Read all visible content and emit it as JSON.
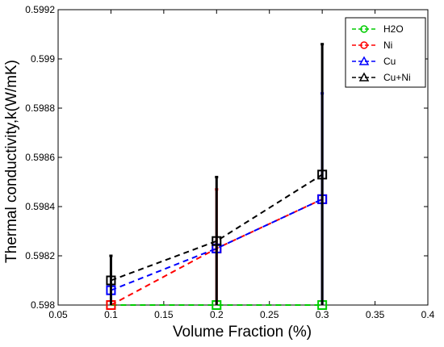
{
  "chart_data": {
    "type": "line",
    "xlabel": "Volume Fraction (%)",
    "ylabel": "Thermal conductivity,k(W/mK)",
    "xlim": [
      0.05,
      0.4
    ],
    "ylim": [
      0.598,
      0.5992
    ],
    "x_ticks": [
      "0.05",
      "0.1",
      "0.15",
      "0.2",
      "0.25",
      "0.3",
      "0.35",
      "0.4"
    ],
    "y_ticks": [
      "0.598",
      "0.5982",
      "0.5984",
      "0.5986",
      "0.5988",
      "0.599",
      "0.5992"
    ],
    "x": [
      0.1,
      0.2,
      0.3
    ],
    "grid": false,
    "legend_position": "top-right",
    "series": [
      {
        "name": "H2O",
        "color": "#00cc00",
        "marker": "circle",
        "values": [
          0.598,
          0.598,
          0.598
        ],
        "error_high": [
          0.598,
          0.598,
          0.598
        ]
      },
      {
        "name": "Ni",
        "color": "#ff0000",
        "marker": "circle",
        "values": [
          0.598,
          0.59823,
          0.59843
        ],
        "error_high": [
          0.598,
          0.59847,
          0.59843
        ]
      },
      {
        "name": "Cu",
        "color": "#0000ff",
        "marker": "triangle",
        "values": [
          0.59806,
          0.59823,
          0.59843
        ],
        "error_high": [
          0.59806,
          0.59823,
          0.59886
        ]
      },
      {
        "name": "Cu+Ni",
        "color": "#000000",
        "marker": "triangle",
        "values": [
          0.5981,
          0.59826,
          0.59853
        ],
        "error_high": [
          0.5982,
          0.59852,
          0.59906
        ]
      }
    ]
  }
}
